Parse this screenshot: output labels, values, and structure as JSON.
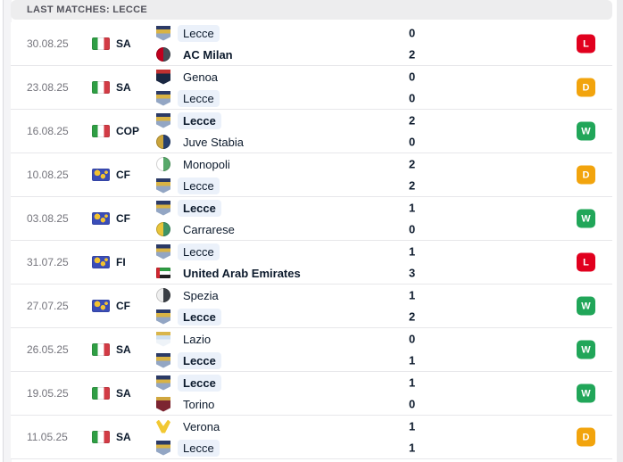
{
  "header": {
    "title": "LAST MATCHES: LECCE"
  },
  "colors": {
    "win": "#21a659",
    "draw": "#f2a40d",
    "loss": "#e1001e",
    "lecce_highlight": "#ebf1fa"
  },
  "matches": [
    {
      "date": "30.08.25",
      "flag": "italy",
      "competition": "SA",
      "result": "L",
      "home": {
        "name": "Lecce",
        "score": "0",
        "winner": false,
        "is_lecce": true,
        "crest": {
          "name": "lecce-crest",
          "shape": "shield",
          "colors": [
            "#2b3a66",
            "#d9b344",
            "#93a6c4"
          ]
        }
      },
      "away": {
        "name": "AC Milan",
        "score": "2",
        "winner": true,
        "is_lecce": false,
        "crest": {
          "name": "ac-milan-crest",
          "shape": "circle",
          "colors": [
            "#c0001e",
            "#474d57"
          ]
        }
      }
    },
    {
      "date": "23.08.25",
      "flag": "italy",
      "competition": "SA",
      "result": "D",
      "home": {
        "name": "Genoa",
        "score": "0",
        "winner": false,
        "is_lecce": false,
        "crest": {
          "name": "genoa-crest",
          "shape": "shield",
          "colors": [
            "#c03030",
            "#1a2742",
            "#1a2742"
          ]
        }
      },
      "away": {
        "name": "Lecce",
        "score": "0",
        "winner": false,
        "is_lecce": true,
        "crest": {
          "name": "lecce-crest",
          "shape": "shield",
          "colors": [
            "#2b3a66",
            "#d9b344",
            "#93a6c4"
          ]
        }
      }
    },
    {
      "date": "16.08.25",
      "flag": "italy",
      "competition": "COP",
      "result": "W",
      "home": {
        "name": "Lecce",
        "score": "2",
        "winner": true,
        "is_lecce": true,
        "crest": {
          "name": "lecce-crest",
          "shape": "shield",
          "colors": [
            "#2b3a66",
            "#d9b344",
            "#93a6c4"
          ]
        }
      },
      "away": {
        "name": "Juve Stabia",
        "score": "0",
        "winner": false,
        "is_lecce": false,
        "crest": {
          "name": "juve-stabia-crest",
          "shape": "circle",
          "colors": [
            "#caa43b",
            "#27406e"
          ]
        }
      }
    },
    {
      "date": "10.08.25",
      "flag": "world",
      "competition": "CF",
      "result": "D",
      "home": {
        "name": "Monopoli",
        "score": "2",
        "winner": false,
        "is_lecce": false,
        "crest": {
          "name": "monopoli-crest",
          "shape": "circle",
          "colors": [
            "#ffffff",
            "#57a96a"
          ]
        }
      },
      "away": {
        "name": "Lecce",
        "score": "2",
        "winner": false,
        "is_lecce": true,
        "crest": {
          "name": "lecce-crest",
          "shape": "shield",
          "colors": [
            "#2b3a66",
            "#d9b344",
            "#93a6c4"
          ]
        }
      }
    },
    {
      "date": "03.08.25",
      "flag": "world",
      "competition": "CF",
      "result": "W",
      "home": {
        "name": "Lecce",
        "score": "1",
        "winner": true,
        "is_lecce": true,
        "crest": {
          "name": "lecce-crest",
          "shape": "shield",
          "colors": [
            "#2b3a66",
            "#d9b344",
            "#93a6c4"
          ]
        }
      },
      "away": {
        "name": "Carrarese",
        "score": "0",
        "winner": false,
        "is_lecce": false,
        "crest": {
          "name": "carrarese-crest",
          "shape": "circle",
          "colors": [
            "#e8c43a",
            "#3f9464"
          ]
        }
      }
    },
    {
      "date": "31.07.25",
      "flag": "world",
      "competition": "FI",
      "result": "L",
      "home": {
        "name": "Lecce",
        "score": "1",
        "winner": false,
        "is_lecce": true,
        "crest": {
          "name": "lecce-crest",
          "shape": "shield",
          "colors": [
            "#2b3a66",
            "#d9b344",
            "#93a6c4"
          ]
        }
      },
      "away": {
        "name": "United Arab Emirates",
        "score": "3",
        "winner": true,
        "is_lecce": false,
        "crest": {
          "name": "uae-flag-crest",
          "shape": "flag",
          "colors": [
            "#2f9e44",
            "#ffffff",
            "#222222",
            "#d22730"
          ]
        }
      }
    },
    {
      "date": "27.07.25",
      "flag": "world",
      "competition": "CF",
      "result": "W",
      "home": {
        "name": "Spezia",
        "score": "1",
        "winner": false,
        "is_lecce": false,
        "crest": {
          "name": "spezia-crest",
          "shape": "circle",
          "colors": [
            "#efefef",
            "#3a3f45"
          ]
        }
      },
      "away": {
        "name": "Lecce",
        "score": "2",
        "winner": true,
        "is_lecce": true,
        "crest": {
          "name": "lecce-crest",
          "shape": "shield",
          "colors": [
            "#2b3a66",
            "#d9b344",
            "#93a6c4"
          ]
        }
      }
    },
    {
      "date": "26.05.25",
      "flag": "italy",
      "competition": "SA",
      "result": "W",
      "home": {
        "name": "Lazio",
        "score": "0",
        "winner": false,
        "is_lecce": false,
        "crest": {
          "name": "lazio-crest",
          "shape": "shield",
          "colors": [
            "#d9b54a",
            "#cfe0f0",
            "#eef3f8"
          ]
        }
      },
      "away": {
        "name": "Lecce",
        "score": "1",
        "winner": true,
        "is_lecce": true,
        "crest": {
          "name": "lecce-crest",
          "shape": "shield",
          "colors": [
            "#2b3a66",
            "#d9b344",
            "#93a6c4"
          ]
        }
      }
    },
    {
      "date": "19.05.25",
      "flag": "italy",
      "competition": "SA",
      "result": "W",
      "home": {
        "name": "Lecce",
        "score": "1",
        "winner": true,
        "is_lecce": true,
        "crest": {
          "name": "lecce-crest",
          "shape": "shield",
          "colors": [
            "#2b3a66",
            "#d9b344",
            "#93a6c4"
          ]
        }
      },
      "away": {
        "name": "Torino",
        "score": "0",
        "winner": false,
        "is_lecce": false,
        "crest": {
          "name": "torino-crest",
          "shape": "shield",
          "colors": [
            "#d0a63e",
            "#7c2531",
            "#7c2531"
          ]
        }
      }
    },
    {
      "date": "11.05.25",
      "flag": "italy",
      "competition": "SA",
      "result": "D",
      "home": {
        "name": "Verona",
        "score": "1",
        "winner": false,
        "is_lecce": false,
        "crest": {
          "name": "verona-crest",
          "shape": "wings",
          "colors": [
            "#f2c832"
          ]
        }
      },
      "away": {
        "name": "Lecce",
        "score": "1",
        "winner": false,
        "is_lecce": true,
        "crest": {
          "name": "lecce-crest",
          "shape": "shield",
          "colors": [
            "#2b3a66",
            "#d9b344",
            "#93a6c4"
          ]
        }
      }
    }
  ]
}
